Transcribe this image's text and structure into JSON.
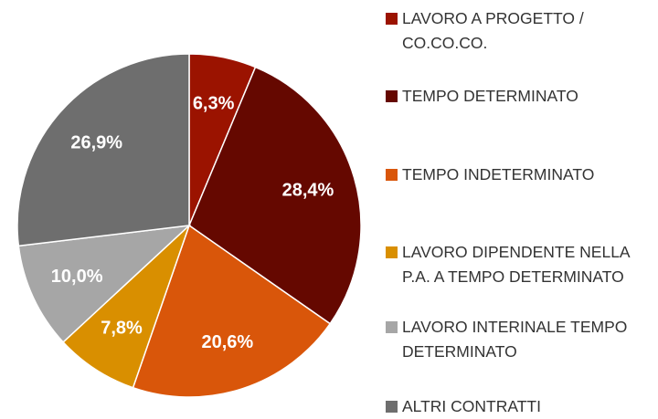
{
  "chart_data": {
    "type": "pie",
    "categories": [
      "LAVORO A PROGETTO / CO.CO.CO.",
      "TEMPO DETERMINATO",
      "TEMPO INDETERMINATO",
      "LAVORO DIPENDENTE NELLA P.A. A TEMPO DETERMINATO",
      "LAVORO INTERINALE TEMPO DETERMINATO",
      "ALTRI CONTRATTI"
    ],
    "values": [
      6.3,
      28.4,
      20.6,
      7.8,
      10.0,
      26.9
    ],
    "value_labels": [
      "6,3%",
      "28,4%",
      "20,6%",
      "7,8%",
      "10,0%",
      "26,9%"
    ],
    "colors": [
      "#9b1300",
      "#650800",
      "#d9560a",
      "#d98f00",
      "#a6a6a6",
      "#6e6e6e"
    ],
    "legend": "right"
  }
}
